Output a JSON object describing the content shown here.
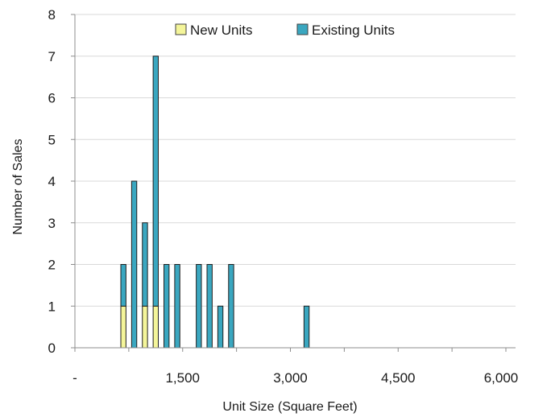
{
  "chart_data": {
    "type": "bar",
    "stacked": true,
    "xlabel": "Unit Size (Square Feet)",
    "ylabel": "Number of Sales",
    "ylim": [
      0,
      8
    ],
    "y_ticks": [
      0,
      1,
      2,
      3,
      4,
      5,
      6,
      7,
      8
    ],
    "x_ticks": [
      "-",
      "1,500",
      "3,000",
      "4,500",
      "6,000"
    ],
    "grid": "horizontal",
    "legend_position": "top",
    "bin_width": 150,
    "bins": [
      0,
      150,
      300,
      450,
      600,
      750,
      900,
      1050,
      1200,
      1350,
      1500,
      1650,
      1800,
      1950,
      2100,
      2250,
      2400,
      2550,
      2700,
      2850,
      3000,
      3150,
      3300,
      3450,
      3600,
      3750,
      3900,
      4050,
      4200,
      4350,
      4500,
      4650,
      4800,
      4950,
      5100,
      5250,
      5400,
      5550,
      5700,
      5850
    ],
    "series": [
      {
        "name": "New Units",
        "color": "#f4f59a",
        "values": [
          0,
          0,
          0,
          0,
          1,
          0,
          1,
          1,
          0,
          0,
          0,
          0,
          0,
          0,
          0,
          0,
          0,
          0,
          0,
          0,
          0,
          0,
          0,
          0,
          0,
          0,
          0,
          0,
          0,
          0,
          0,
          0,
          0,
          0,
          0,
          0,
          0,
          0,
          0,
          0
        ]
      },
      {
        "name": "Existing Units",
        "color": "#3aa7c0",
        "values": [
          0,
          0,
          0,
          0,
          1,
          4,
          2,
          6,
          2,
          2,
          0,
          2,
          2,
          1,
          2,
          0,
          0,
          0,
          0,
          0,
          0,
          1,
          0,
          0,
          0,
          0,
          0,
          0,
          0,
          0,
          0,
          0,
          0,
          0,
          0,
          0,
          0,
          0,
          0,
          0
        ]
      }
    ]
  }
}
